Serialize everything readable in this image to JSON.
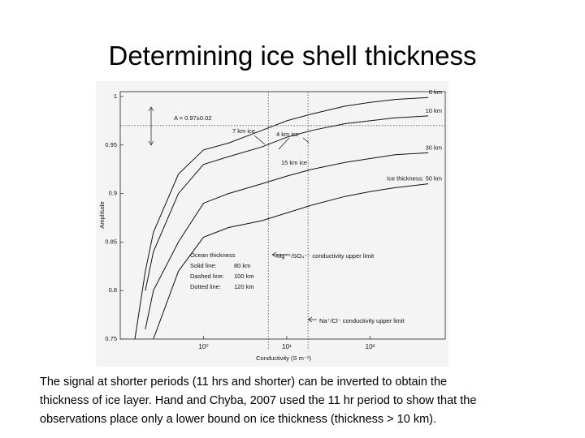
{
  "title": "Determining ice shell thickness",
  "chart_data": {
    "type": "line",
    "xlabel": "Conductivity (S m⁻¹)",
    "ylabel": "Amplitude",
    "xscale": "log",
    "xlim": [
      0.1,
      800
    ],
    "ylim": [
      0.75,
      1.005
    ],
    "xticks": [
      {
        "value": 1,
        "label": "10⁰"
      },
      {
        "value": 10,
        "label": "10¹"
      },
      {
        "value": 100,
        "label": "10²"
      }
    ],
    "yticks": [
      0.75,
      0.8,
      0.85,
      0.9,
      0.95,
      1
    ],
    "x": [
      0.15,
      0.2,
      0.25,
      0.5,
      1,
      2,
      5,
      10,
      20,
      50,
      100,
      200,
      500
    ],
    "series": [
      {
        "name": "0 km",
        "color": "#111111",
        "values": [
          0.75,
          0.82,
          0.86,
          0.92,
          0.945,
          0.952,
          0.965,
          0.975,
          0.982,
          0.99,
          0.994,
          0.997,
          0.999
        ]
      },
      {
        "name": "10 km",
        "color": "#111111",
        "values": [
          null,
          0.8,
          0.84,
          0.9,
          0.93,
          0.938,
          0.948,
          0.958,
          0.965,
          0.972,
          0.975,
          0.978,
          0.98
        ]
      },
      {
        "name": "30 km",
        "color": "#111111",
        "values": [
          null,
          0.76,
          0.8,
          0.85,
          0.89,
          0.9,
          0.91,
          0.918,
          0.925,
          0.932,
          0.936,
          0.94,
          0.942
        ]
      },
      {
        "name": "Ice thickness: 50 km",
        "color": "#111111",
        "values": [
          null,
          null,
          0.75,
          0.82,
          0.855,
          0.865,
          0.872,
          0.88,
          0.888,
          0.897,
          0.902,
          0.906,
          0.91
        ]
      }
    ],
    "vlines": [
      6,
      18
    ],
    "hline": 0.97,
    "annotations": [
      "A = 0.97±0.02",
      "7 km ice",
      "4 km ice",
      "15 km ice",
      "Mg⁺⁺/SO₄⁻⁻ conductivity upper limit",
      "Na⁺/Cl⁻ conductivity upper limit",
      "Ocean thickness",
      "Solid line:",
      "80 km",
      "Dashed line:",
      "100 km",
      "Dotted line:",
      "120 km"
    ]
  },
  "caption": [
    "The signal at shorter  periods (11 hrs and shorter) can be inverted to obtain the",
    "thickness of ice layer.  Hand and Chyba, 2007 used the 11 hr period to show that the",
    "observations place only a lower bound on ice thickness (thickness > 10 km)."
  ]
}
